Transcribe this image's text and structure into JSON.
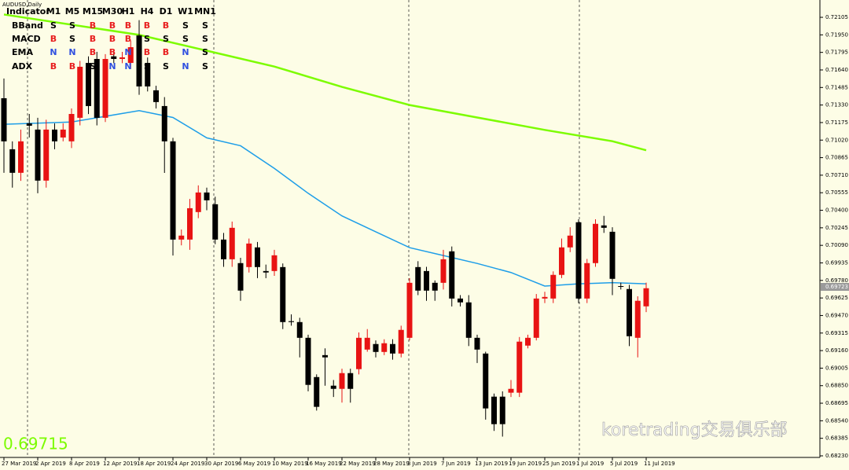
{
  "chart_data": {
    "type": "candlestick",
    "symbol_label": "AUDUSD,Daily",
    "bid_label": 0.69715,
    "last_price_label": 0.69723,
    "watermark": "koretrading交易俱乐部",
    "categories": [
      "27 Mar 2019",
      null,
      null,
      null,
      "2 Apr 2019",
      null,
      null,
      null,
      "8 Apr 2019",
      null,
      null,
      null,
      "12 Apr 2019",
      null,
      null,
      null,
      "18 Apr 2019",
      null,
      null,
      null,
      "24 Apr 2019",
      null,
      null,
      null,
      "30 Apr 2019",
      null,
      null,
      null,
      "6 May 2019",
      null,
      null,
      null,
      "10 May 2019",
      null,
      null,
      null,
      "16 May 2019",
      null,
      null,
      null,
      "22 May 2019",
      null,
      null,
      null,
      "28 May 2019",
      null,
      null,
      null,
      "3 Jun 2019",
      null,
      null,
      null,
      "7 Jun 2019",
      null,
      null,
      null,
      "13 Jun 2019",
      null,
      null,
      null,
      "19 Jun 2019",
      null,
      null,
      null,
      "25 Jun 2019",
      null,
      null,
      null,
      "1 Jul 2019",
      null,
      null,
      null,
      "5 Jul 2019",
      null,
      null,
      null,
      "11 Jul 2019"
    ],
    "open": [
      0.7139,
      0.70939,
      0.70731,
      0.71168,
      0.71113,
      0.70662,
      0.71113,
      0.71043,
      0.71009,
      0.71217,
      0.71702,
      0.71737,
      0.71217,
      0.7176,
      0.71737,
      0.71702,
      0.71945,
      0.71702,
      0.7146,
      0.71321,
      0.71009,
      0.70141,
      0.70141,
      0.70384,
      0.70557,
      0.70453,
      0.70141,
      0.69967,
      0.69933,
      0.69898,
      0.70072,
      0.69863,
      0.69863,
      0.69898,
      0.6942,
      0.69412,
      0.69273,
      0.68926,
      0.6912,
      0.6885,
      0.68822,
      0.68961,
      0.68996,
      0.69169,
      0.69218,
      0.69148,
      0.69218,
      0.69134,
      0.69273,
      0.69898,
      0.69863,
      0.69759,
      0.69759,
      0.70037,
      0.6962,
      0.69586,
      0.69273,
      0.69134,
      0.68753,
      0.68753,
      0.68788,
      0.68788,
      0.69204,
      0.69273,
      0.6962,
      0.6962,
      0.69829,
      0.70072,
      0.70294,
      0.6962,
      0.69933,
      0.70266,
      0.7021,
      0.6973,
      0.69704,
      0.69273,
      0.69551
    ],
    "high": [
      0.71564,
      0.71009,
      0.71113,
      0.71251,
      0.71217,
      0.712,
      0.71168,
      0.71168,
      0.713,
      0.7172,
      0.7176,
      0.718,
      0.7178,
      0.718,
      0.718,
      0.719,
      0.7208,
      0.7175,
      0.715,
      0.714,
      0.7104,
      0.7023,
      0.705,
      0.7062,
      0.706,
      0.7052,
      0.702,
      0.703,
      0.6998,
      0.7015,
      0.7012,
      0.6992,
      0.7005,
      0.6993,
      0.6948,
      0.6945,
      0.693,
      0.6895,
      0.6918,
      0.689,
      0.69,
      0.69,
      0.6932,
      0.6935,
      0.6925,
      0.6926,
      0.6926,
      0.6938,
      0.698,
      0.6995,
      0.699,
      0.6978,
      0.7005,
      0.7008,
      0.6965,
      0.6965,
      0.693,
      0.6915,
      0.6878,
      0.688,
      0.689,
      0.6928,
      0.693,
      0.6966,
      0.6968,
      0.6986,
      0.7015,
      0.7025,
      0.7032,
      0.6997,
      0.7032,
      0.7035,
      0.7025,
      0.6976,
      0.6974,
      0.6964,
      0.6976
    ],
    "low": [
      0.70731,
      0.706,
      0.7066,
      0.71043,
      0.7055,
      0.706,
      0.70939,
      0.71009,
      0.7095,
      0.7115,
      0.7125,
      0.7115,
      0.7118,
      0.717,
      0.717,
      0.7165,
      0.7142,
      0.7145,
      0.713,
      0.7073,
      0.7,
      0.7009,
      0.7005,
      0.7033,
      0.704,
      0.701,
      0.699,
      0.699,
      0.696,
      0.6985,
      0.698,
      0.698,
      0.6982,
      0.6935,
      0.6938,
      0.691,
      0.688,
      0.6863,
      0.6885,
      0.6875,
      0.687,
      0.687,
      0.6895,
      0.6915,
      0.691,
      0.6912,
      0.6908,
      0.691,
      0.6925,
      0.6965,
      0.696,
      0.696,
      0.697,
      0.6955,
      0.6955,
      0.692,
      0.6905,
      0.6855,
      0.6845,
      0.684,
      0.6875,
      0.6875,
      0.6918,
      0.6925,
      0.6958,
      0.6958,
      0.698,
      0.7003,
      0.6958,
      0.6958,
      0.699,
      0.702,
      0.6965,
      0.697,
      0.692,
      0.691,
      0.695
    ],
    "close": [
      0.71009,
      0.70731,
      0.71009,
      0.71147,
      0.70662,
      0.71113,
      0.71009,
      0.71113,
      0.71251,
      0.71668,
      0.71321,
      0.71217,
      0.71737,
      0.71737,
      0.71751,
      0.71841,
      0.71494,
      0.71494,
      0.71356,
      0.71009,
      0.70141,
      0.70176,
      0.70418,
      0.70557,
      0.70488,
      0.70141,
      0.69967,
      0.70245,
      0.6969,
      0.70106,
      0.69898,
      0.6985,
      0.70002,
      0.69412,
      0.69412,
      0.69273,
      0.68857,
      0.68663,
      0.691,
      0.68822,
      0.68961,
      0.68822,
      0.69273,
      0.69273,
      0.69148,
      0.69225,
      0.69134,
      0.69343,
      0.69759,
      0.6969,
      0.6969,
      0.6969,
      0.69967,
      0.6962,
      0.69586,
      0.69273,
      0.69169,
      0.68649,
      0.6851,
      0.6851,
      0.68822,
      0.69239,
      0.69273,
      0.6962,
      0.69634,
      0.69829,
      0.70072,
      0.70176,
      0.6962,
      0.69933,
      0.7028,
      0.70245,
      0.69794,
      0.69725,
      0.69287,
      0.696,
      0.69711
    ],
    "up_color": "#e81313",
    "down_color": "#000000",
    "lines": [
      {
        "color": "#7cfc00",
        "x": [
          0,
          16,
          24,
          32,
          40,
          48,
          56,
          64,
          72,
          76
        ],
        "values": [
          0.7213,
          0.7195,
          0.7181,
          0.7167,
          0.7149,
          0.7133,
          0.7122,
          0.7111,
          0.7101,
          0.7093
        ]
      },
      {
        "color": "#1e9ee8",
        "x": [
          0,
          8,
          16,
          20,
          24,
          28,
          32,
          36,
          40,
          44,
          48,
          52,
          56,
          60,
          64,
          68,
          72,
          76
        ],
        "values": [
          0.7116,
          0.7118,
          0.7128,
          0.7122,
          0.7104,
          0.7097,
          0.7077,
          0.7055,
          0.7035,
          0.7021,
          0.7007,
          0.7,
          0.6993,
          0.6985,
          0.6973,
          0.6975,
          0.6976,
          0.6975
        ]
      }
    ],
    "ylim": [
      0.68216,
      0.72258
    ],
    "yticks": [
      0.72105,
      {
        "value": 0.7195,
        "label": "0.71950"
      },
      0.71795,
      {
        "value": 0.7164,
        "label": "0.71640"
      },
      0.71485,
      {
        "value": 0.7133,
        "label": "0.71330"
      },
      0.71175,
      {
        "value": 0.7102,
        "label": "0.71020"
      },
      0.70865,
      {
        "value": 0.7071,
        "label": "0.70710"
      },
      0.70555,
      {
        "value": 0.704,
        "label": "0.70400"
      },
      0.70245,
      {
        "value": 0.7009,
        "label": "0.70090"
      },
      0.69935,
      {
        "value": 0.6978,
        "label": "0.69780"
      },
      0.69625,
      {
        "value": 0.6947,
        "label": "0.69470"
      },
      0.69315,
      {
        "value": 0.6916,
        "label": "0.69160"
      },
      0.69005,
      {
        "value": 0.6885,
        "label": "0.68850"
      },
      0.68695,
      {
        "value": 0.6854,
        "label": "0.68540"
      },
      0.68385,
      {
        "value": 0.6823,
        "label": "0.68230"
      }
    ],
    "indicator_table": {
      "header": [
        "Indicator",
        "M1",
        "M5",
        "M15",
        "M30",
        "H1",
        "H4",
        "D1",
        "W1",
        "MN1"
      ],
      "rows": [
        {
          "name": "BBand",
          "signals": [
            "S",
            "S",
            "B",
            "B",
            "B",
            "B",
            "B",
            "S",
            "S"
          ]
        },
        {
          "name": "MACD",
          "signals": [
            "B",
            "S",
            "B",
            "B",
            "B",
            "S",
            "S",
            "S",
            "S"
          ]
        },
        {
          "name": "EMA",
          "signals": [
            "N",
            "N",
            "B",
            "B",
            "N",
            "B",
            "B",
            "N",
            "S"
          ]
        },
        {
          "name": "ADX",
          "signals": [
            "B",
            "B",
            "S",
            "N",
            "N",
            "S",
            "S",
            "N",
            "S"
          ]
        }
      ]
    }
  }
}
